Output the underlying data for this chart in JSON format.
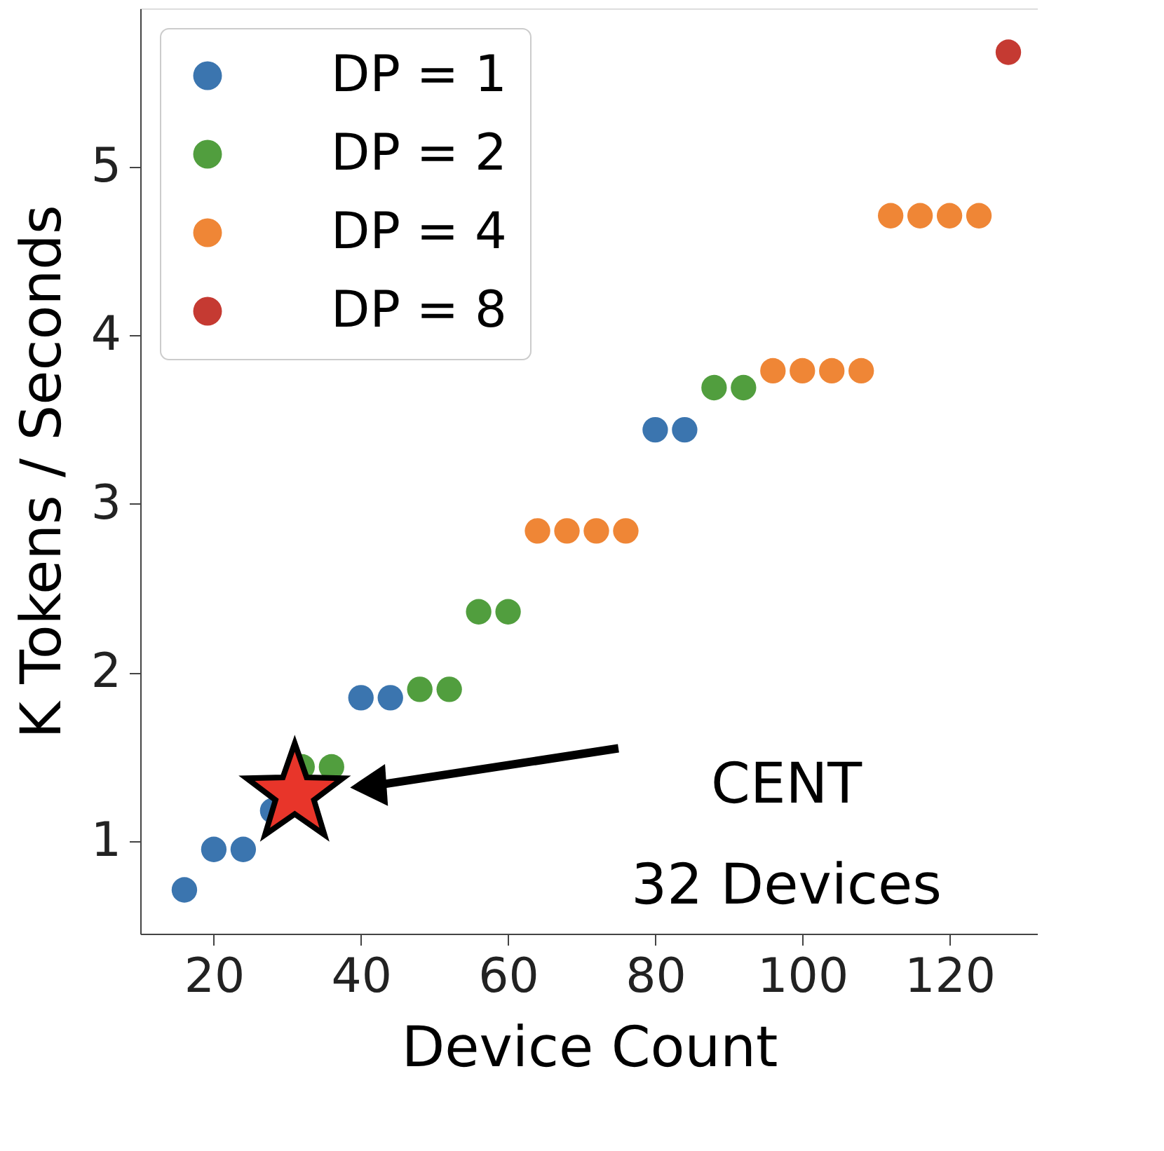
{
  "chart_data": {
    "type": "scatter",
    "xlabel": "Device Count",
    "ylabel": "K Tokens / Seconds",
    "xlim": [
      10,
      132
    ],
    "xticks": [
      20,
      40,
      60,
      80,
      100,
      120
    ],
    "ylim": [
      0.45,
      5.94
    ],
    "yticks": [
      1,
      2,
      3,
      4,
      5
    ],
    "grid": false,
    "legend": "top left",
    "marker": "circle",
    "series": [
      {
        "name": "DP = 1",
        "color": "#3b75af",
        "x": [
          16,
          20,
          24,
          28,
          40,
          44,
          80,
          84
        ],
        "values": [
          0.71,
          0.95,
          0.95,
          1.18,
          1.85,
          1.85,
          3.44,
          3.44
        ]
      },
      {
        "name": "DP = 2",
        "color": "#519e3e",
        "x": [
          32,
          36,
          48,
          52,
          56,
          60,
          88,
          92
        ],
        "values": [
          1.44,
          1.44,
          1.9,
          1.9,
          2.36,
          2.36,
          3.69,
          3.69
        ]
      },
      {
        "name": "DP = 4",
        "color": "#ef8636",
        "x": [
          64,
          68,
          72,
          76,
          96,
          100,
          104,
          108,
          112,
          116,
          120,
          124
        ],
        "values": [
          2.84,
          2.84,
          2.84,
          2.84,
          3.79,
          3.79,
          3.79,
          3.79,
          4.71,
          4.71,
          4.71,
          4.71
        ]
      },
      {
        "name": "DP = 8",
        "color": "#c53a32",
        "x": [
          128
        ],
        "values": [
          5.68
        ]
      },
      {
        "color": "#e8352a",
        "marker": "star",
        "x": [
          31
        ],
        "values": [
          1.28
        ]
      }
    ],
    "annotations": [
      "CENT\n32 Devices"
    ]
  }
}
